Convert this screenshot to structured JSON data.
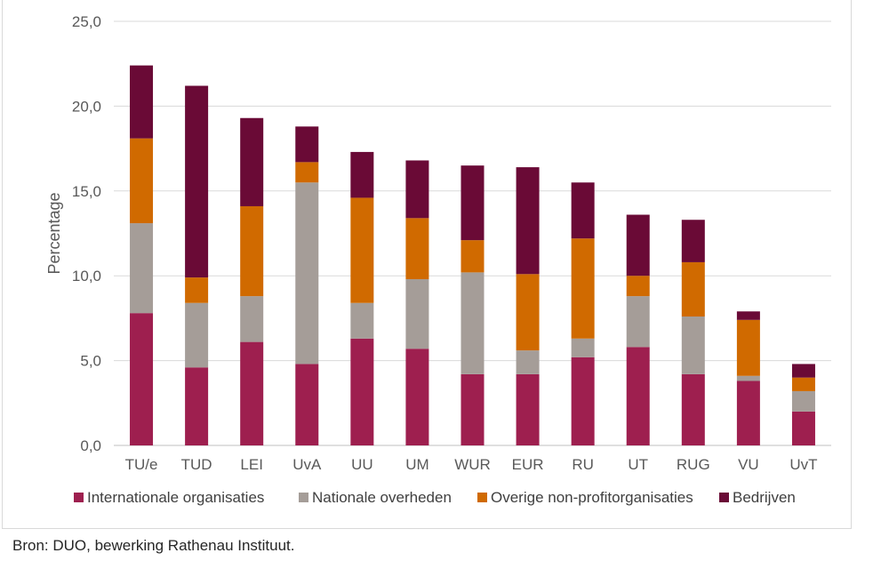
{
  "chart_data": {
    "type": "bar",
    "stacked": true,
    "categories": [
      "TU/e",
      "TUD",
      "LEI",
      "UvA",
      "UU",
      "UM",
      "WUR",
      "EUR",
      "RU",
      "UT",
      "RUG",
      "VU",
      "UvT"
    ],
    "series": [
      {
        "name": "Internationale organisaties",
        "color": "#9e1f4f",
        "values": [
          7.8,
          4.6,
          6.1,
          4.8,
          6.3,
          5.7,
          4.2,
          4.2,
          5.2,
          5.8,
          4.2,
          3.8,
          2.0
        ]
      },
      {
        "name": "Nationale overheden",
        "color": "#a59d98",
        "values": [
          5.3,
          3.8,
          2.7,
          10.7,
          2.1,
          4.1,
          6.0,
          1.4,
          1.1,
          3.0,
          3.4,
          0.3,
          1.2
        ]
      },
      {
        "name": "Overige non-profitorganisaties",
        "color": "#d06a00",
        "values": [
          5.0,
          1.5,
          5.3,
          1.2,
          6.2,
          3.6,
          1.9,
          4.5,
          5.9,
          1.2,
          3.2,
          3.3,
          0.8
        ]
      },
      {
        "name": "Bedrijven",
        "color": "#6a0a36",
        "values": [
          4.3,
          11.3,
          5.2,
          2.1,
          2.7,
          3.4,
          4.4,
          6.3,
          3.3,
          3.6,
          2.5,
          0.5,
          0.8
        ]
      }
    ],
    "ylabel": "Percentage",
    "ylim": [
      0,
      25
    ],
    "yticks": [
      "0,0",
      "5,0",
      "10,0",
      "15,0",
      "20,0",
      "25,0"
    ],
    "ytick_values": [
      0,
      5,
      10,
      15,
      20,
      25
    ],
    "grid": true,
    "legend_position": "bottom"
  },
  "source_note": "Bron: DUO, bewerking Rathenau Instituut."
}
